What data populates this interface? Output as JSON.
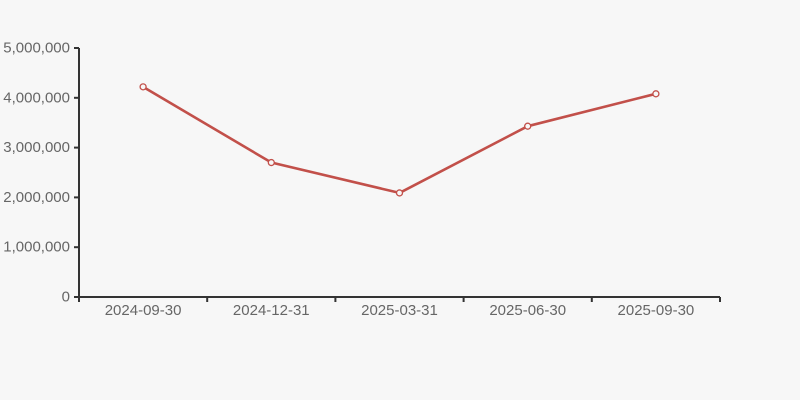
{
  "page": {
    "background_color": "#f7f7f7"
  },
  "chart_data": {
    "type": "line",
    "title": "",
    "xlabel": "",
    "ylabel": "",
    "categories": [
      "2024-09-30",
      "2024-12-31",
      "2025-03-31",
      "2025-06-30",
      "2025-09-30"
    ],
    "series": [
      {
        "name": "series-1",
        "values": [
          4220000,
          2700000,
          2090000,
          3430000,
          4080000
        ]
      }
    ],
    "ylim": [
      0,
      5000000
    ],
    "y_ticks": [
      0,
      1000000,
      2000000,
      3000000,
      4000000,
      5000000
    ],
    "y_tick_labels": [
      "0",
      "1,000,000",
      "2,000,000",
      "3,000,000",
      "4,000,000",
      "5,000,000"
    ],
    "grid": false,
    "legend_position": "none",
    "marker": "open-circle",
    "colors": {
      "line": "#c2504a",
      "marker_fill": "#f7f7f7",
      "axis": "#333333",
      "tick_label": "#666666",
      "background": "#f7f7f7"
    }
  }
}
